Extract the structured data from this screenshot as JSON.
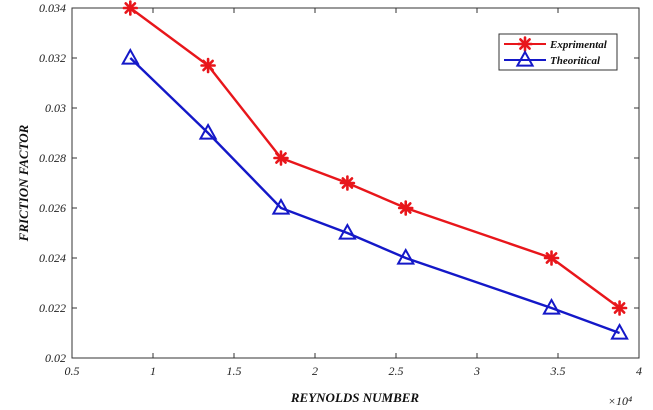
{
  "chart_data": {
    "type": "line",
    "xlabel": "REYNOLDS NUMBER",
    "ylabel": "FRICTION FACTOR",
    "x_multiplier_label": "×10⁴",
    "xlim": [
      0.5,
      4
    ],
    "ylim": [
      0.02,
      0.034
    ],
    "x_ticks": [
      "0.5",
      "1",
      "1.5",
      "2",
      "2.5",
      "3",
      "3.5",
      "4"
    ],
    "y_ticks": [
      "0.02",
      "0.022",
      "0.024",
      "0.026",
      "0.028",
      "0.03",
      "0.032",
      "0.034"
    ],
    "grid": false,
    "legend_position": "top-right",
    "series": [
      {
        "name": "Exprimental",
        "color": "#e8161b",
        "marker": "asterisk",
        "x": [
          0.86,
          1.34,
          1.79,
          2.2,
          2.56,
          3.46,
          3.88
        ],
        "y": [
          0.034,
          0.0317,
          0.028,
          0.027,
          0.026,
          0.024,
          0.022
        ]
      },
      {
        "name": "Theoritical",
        "color": "#1418c8",
        "marker": "triangle",
        "x": [
          0.86,
          1.34,
          1.79,
          2.2,
          2.56,
          3.46,
          3.88
        ],
        "y": [
          0.032,
          0.029,
          0.026,
          0.025,
          0.024,
          0.022,
          0.021
        ]
      }
    ]
  }
}
